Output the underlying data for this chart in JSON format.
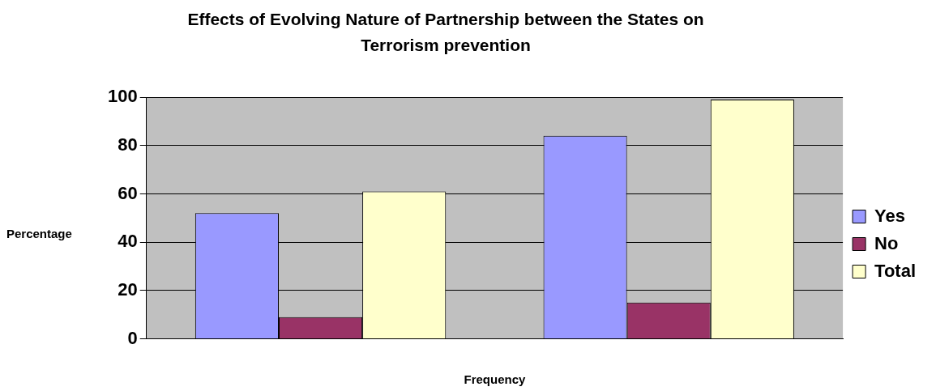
{
  "chart_data": {
    "type": "bar",
    "title": "Effects of Evolving Nature of Partnership between the States on Terrorism prevention",
    "xlabel": "Frequency",
    "ylabel": "Percentage",
    "categories": [
      null,
      null
    ],
    "series": [
      {
        "name": "Yes",
        "color": "#9999ff",
        "values": [
          52,
          84
        ]
      },
      {
        "name": "No",
        "color": "#993366",
        "values": [
          9,
          15
        ]
      },
      {
        "name": "Total",
        "color": "#ffffcc",
        "values": [
          61,
          99
        ]
      }
    ],
    "ylim": [
      0,
      100
    ],
    "yticks": [
      0,
      20,
      40,
      60,
      80,
      100
    ],
    "grid": "y",
    "legend": "right"
  }
}
